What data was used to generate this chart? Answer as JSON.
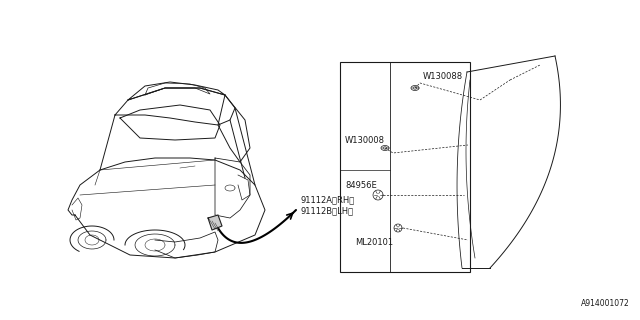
{
  "bg_color": "#ffffff",
  "line_color": "#1a1a1a",
  "diagram_id": "A914001072",
  "label_W130088": "W130088",
  "label_W130008": "W130008",
  "label_84956E": "84956E",
  "label_ML20101": "ML20101",
  "label_91112A": "91112A〈RH〉",
  "label_91112B": "91112B〈LH〉",
  "font_size": 6.0,
  "font_size_id": 5.5
}
